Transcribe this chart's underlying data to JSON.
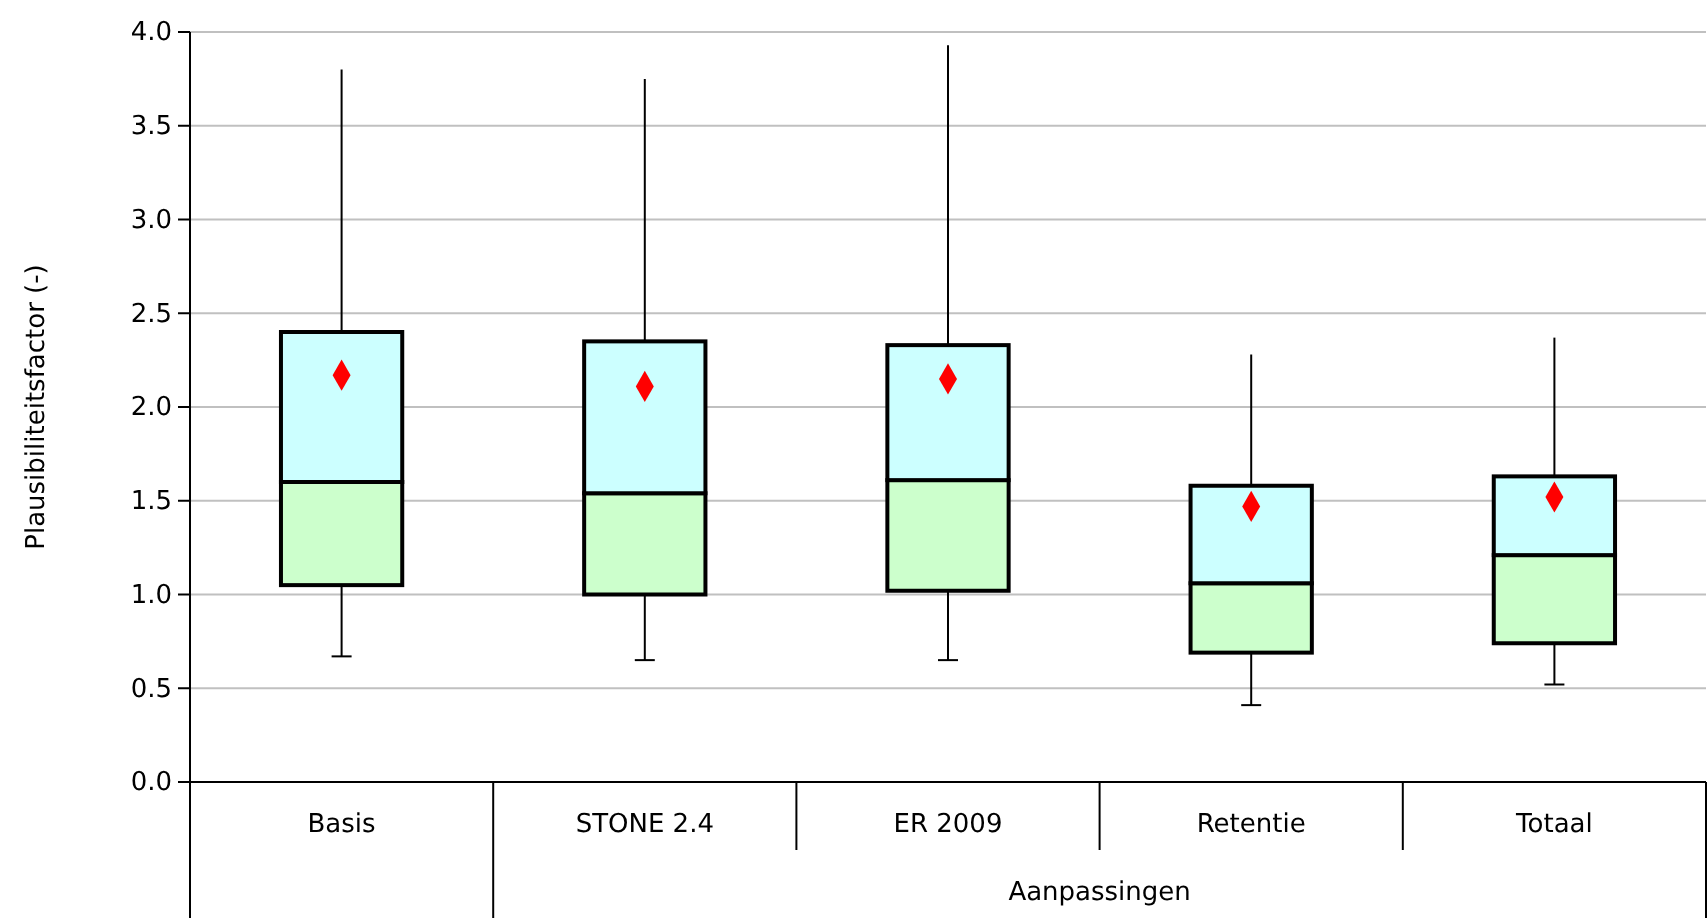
{
  "chart_data": {
    "type": "box",
    "xlabel": "Aanpassingen",
    "ylabel": "Plausibiliteitsfactor (-)",
    "categories": [
      "Basis",
      "STONE 2.4",
      "ER 2009",
      "Retentie",
      "Totaal"
    ],
    "ylim": [
      0,
      4
    ],
    "yticks": [
      {
        "value": 0,
        "label": "0.0"
      },
      {
        "value": 0.5,
        "label": "0.5"
      },
      {
        "value": 1,
        "label": "1.0"
      },
      {
        "value": 1.5,
        "label": "1.5"
      },
      {
        "value": 2,
        "label": "2.0"
      },
      {
        "value": 2.5,
        "label": "2.5"
      },
      {
        "value": 3,
        "label": "3.0"
      },
      {
        "value": 3.5,
        "label": "3.5"
      },
      {
        "value": 4,
        "label": "4.0"
      }
    ],
    "grid": "y",
    "series": [
      {
        "color": "#ccffff",
        "colors": [
          "#ccffcc",
          "#ccffcc",
          "#ccffcc",
          "#ccffcc",
          "#ccffcc"
        ],
        "boxes": [
          {
            "low": 0.67,
            "q1": 1.05,
            "median": 1.6,
            "q3": 2.4,
            "high": 3.8
          },
          {
            "low": 0.65,
            "q1": 1.0,
            "median": 1.54,
            "q3": 2.35,
            "high": 3.75
          },
          {
            "low": 0.65,
            "q1": 1.02,
            "median": 1.61,
            "q3": 2.33,
            "high": 3.93
          },
          {
            "low": 0.41,
            "q1": 0.69,
            "median": 1.06,
            "q3": 1.58,
            "high": 2.28
          },
          {
            "low": 0.52,
            "q1": 0.74,
            "median": 1.21,
            "q3": 1.63,
            "high": 2.37
          }
        ]
      },
      {
        "type": "scatter",
        "marker": "diamond",
        "color": "#ff0000",
        "x": [
          "Basis",
          "STONE 2.4",
          "ER 2009",
          "Retentie",
          "Totaal"
        ],
        "values": [
          2.17,
          2.11,
          2.15,
          1.47,
          1.52
        ]
      }
    ]
  }
}
